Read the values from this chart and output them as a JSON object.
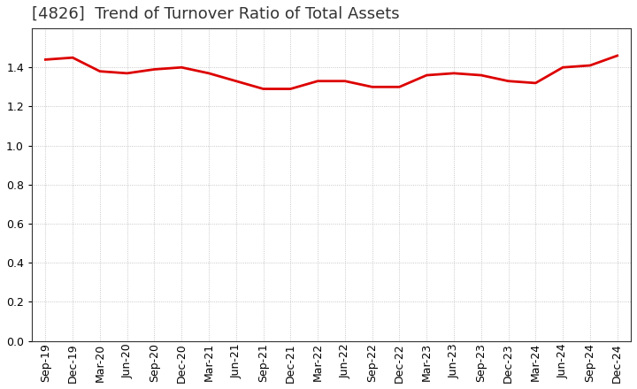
{
  "title": "[4826]  Trend of Turnover Ratio of Total Assets",
  "line_color": "#DD0000",
  "line_width": 2.0,
  "bg_color": "#FFFFFF",
  "grid_color": "#999999",
  "ylim": [
    0.0,
    1.6
  ],
  "yticks": [
    0.0,
    0.2,
    0.4,
    0.6,
    0.8,
    1.0,
    1.2,
    1.4
  ],
  "x_labels": [
    "Sep-19",
    "Dec-19",
    "Mar-20",
    "Jun-20",
    "Sep-20",
    "Dec-20",
    "Mar-21",
    "Jun-21",
    "Sep-21",
    "Dec-21",
    "Mar-22",
    "Jun-22",
    "Sep-22",
    "Dec-22",
    "Mar-23",
    "Jun-23",
    "Sep-23",
    "Dec-23",
    "Mar-24",
    "Jun-24",
    "Sep-24",
    "Dec-24"
  ],
  "values": [
    1.44,
    1.45,
    1.38,
    1.37,
    1.39,
    1.4,
    1.37,
    1.33,
    1.29,
    1.29,
    1.33,
    1.33,
    1.3,
    1.3,
    1.36,
    1.37,
    1.36,
    1.33,
    1.32,
    1.4,
    1.41,
    1.46
  ],
  "title_fontsize": 13,
  "tick_fontsize": 9,
  "title_color": "#333333"
}
